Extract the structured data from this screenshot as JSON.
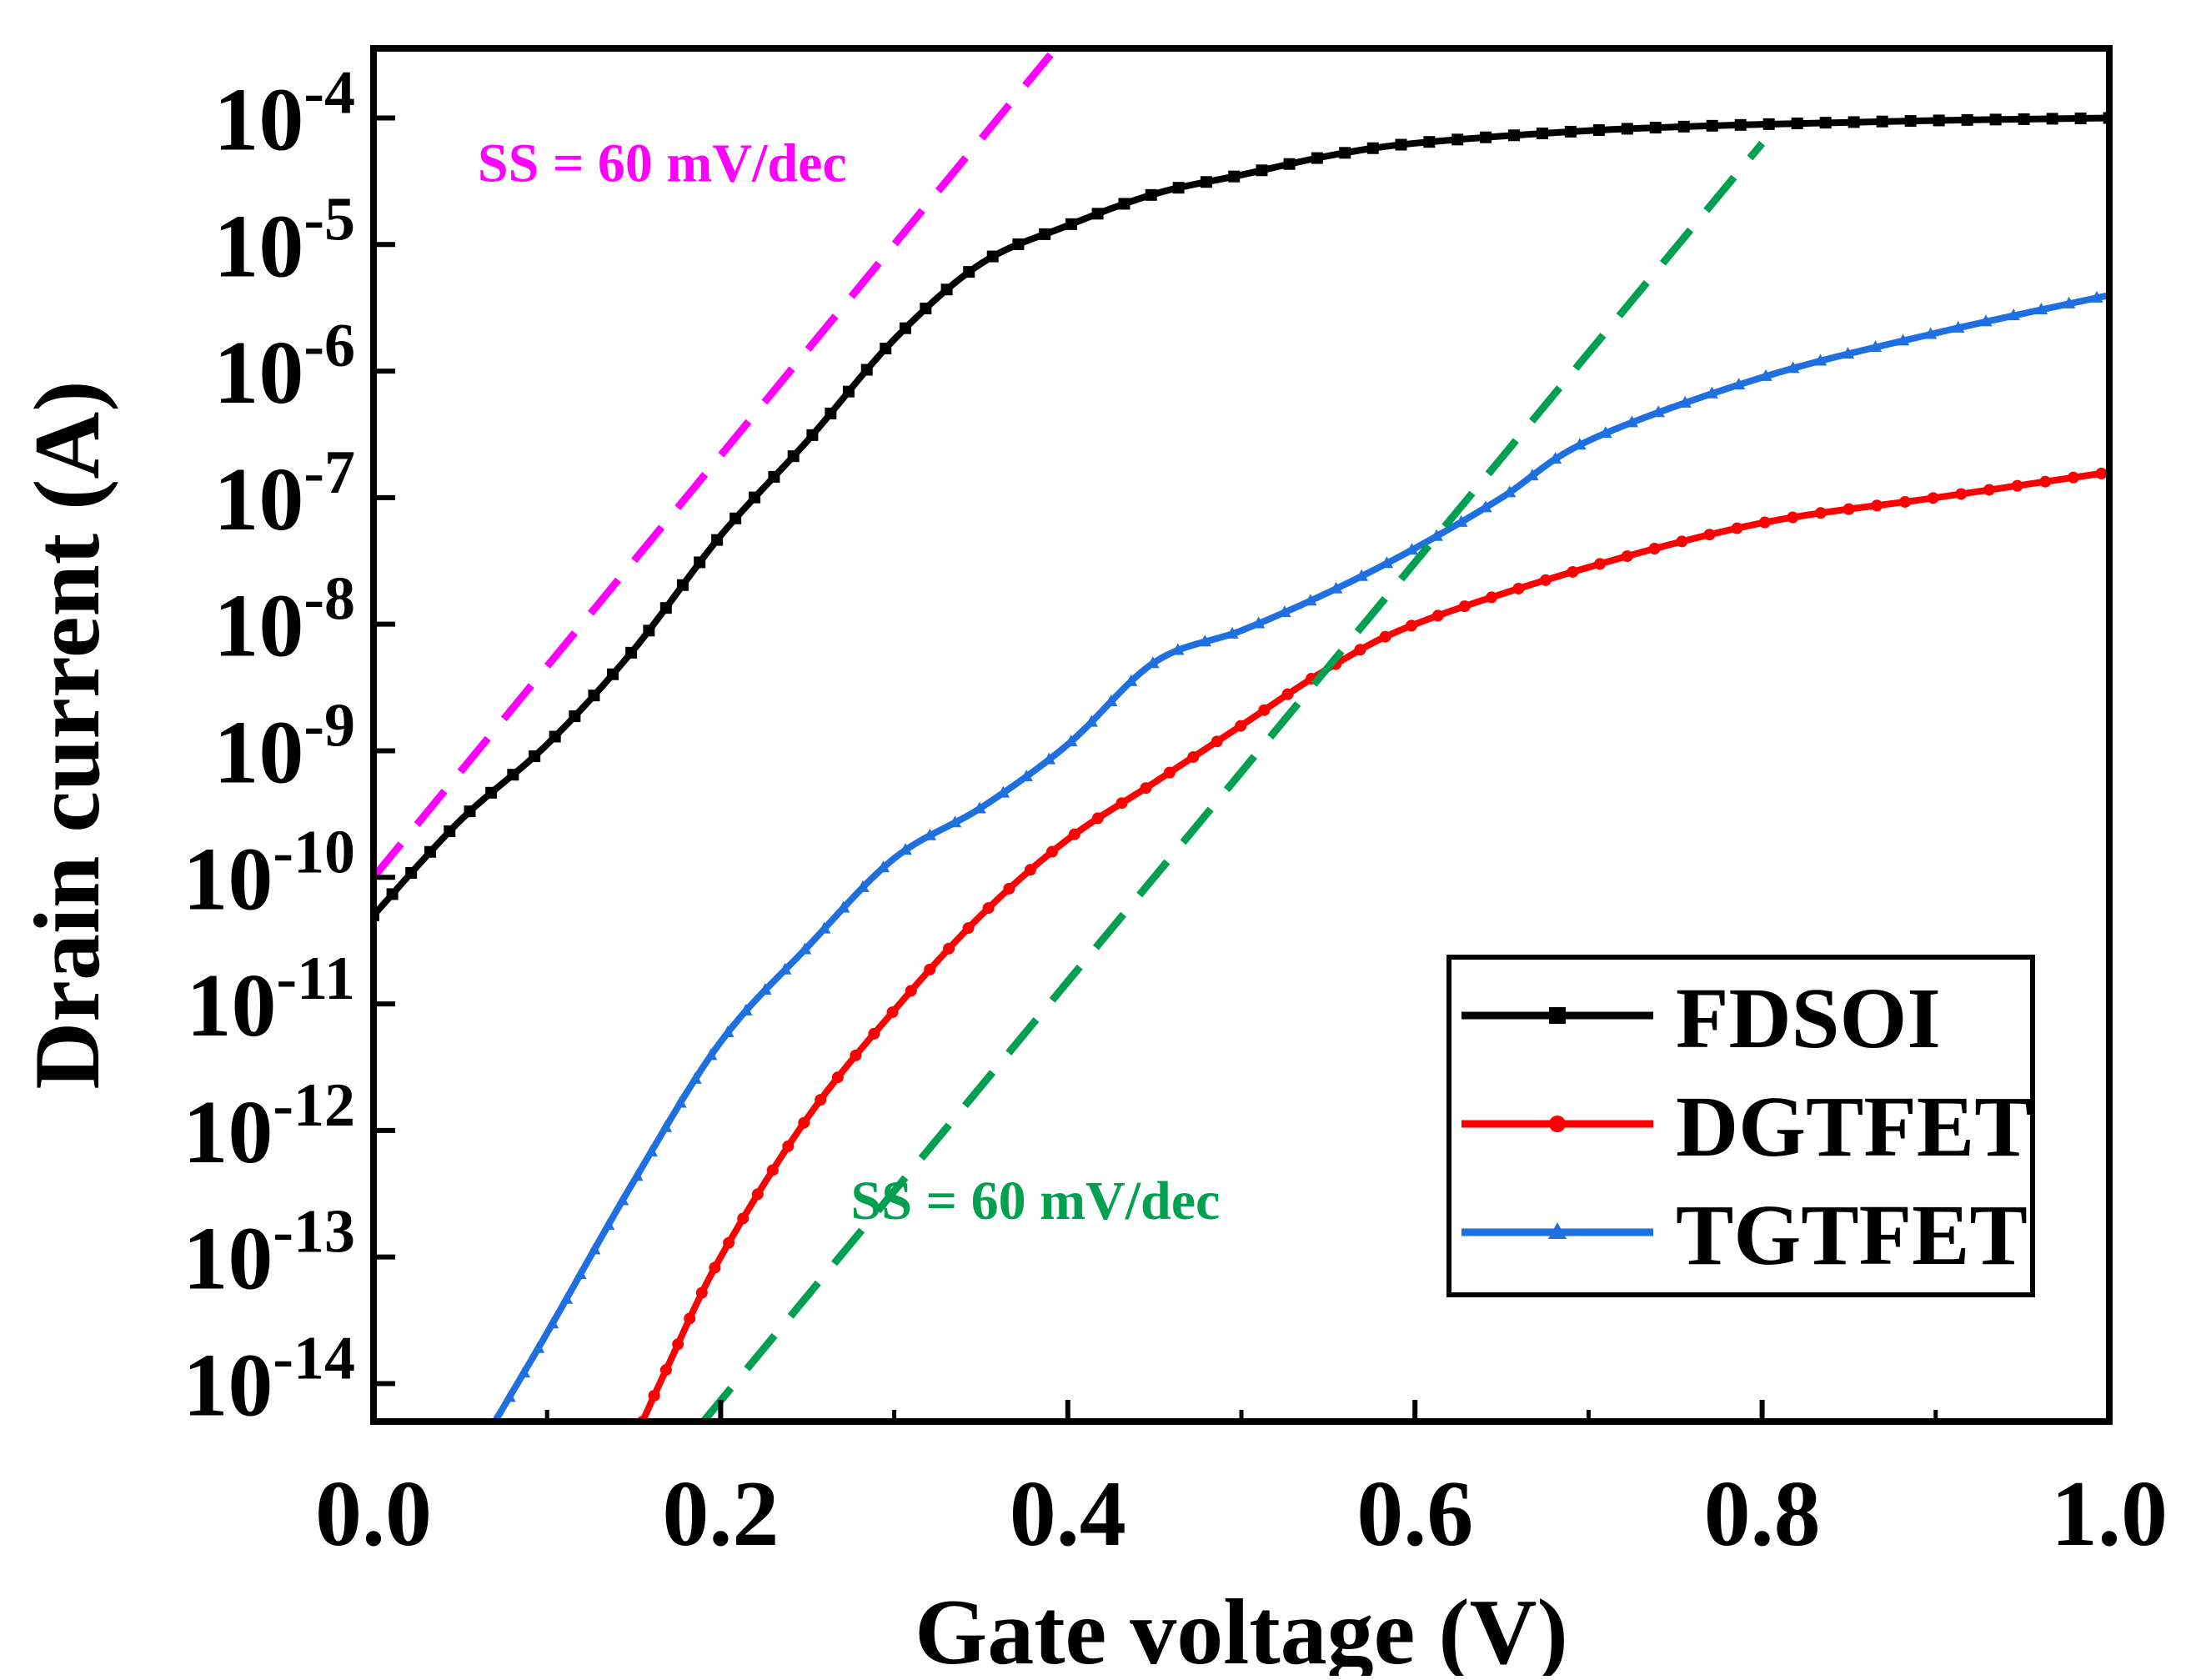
{
  "chart_data": {
    "type": "line",
    "title": "",
    "xlabel": "Gate voltage (V)",
    "ylabel": "Drain current (A)",
    "xlim": [
      0.0,
      1.0
    ],
    "ylim_log10": [
      -14.3,
      -3.45
    ],
    "y_scale": "log",
    "grid": false,
    "legend_position": "bottom-right",
    "x_ticks": [
      0.0,
      0.2,
      0.4,
      0.6,
      0.8,
      1.0
    ],
    "x_tick_labels": [
      "0.0",
      "0.2",
      "0.4",
      "0.6",
      "0.8",
      "1.0"
    ],
    "y_tick_base": "10",
    "y_tick_exponents": [
      "-4",
      "-5",
      "-6",
      "-7",
      "-8",
      "-9",
      "-10",
      "-11",
      "-12",
      "-13",
      "-14"
    ],
    "y_tick_values_log10": [
      -4,
      -5,
      -6,
      -7,
      -8,
      -9,
      -10,
      -11,
      -12,
      -13,
      -14
    ],
    "series": [
      {
        "name": "FDSOI",
        "color": "#000000",
        "marker": "square",
        "x": [
          0.0,
          0.05,
          0.1,
          0.15,
          0.2,
          0.25,
          0.3,
          0.35,
          0.4,
          0.45,
          0.5,
          0.55,
          0.6,
          0.7,
          0.8,
          0.9,
          1.0
        ],
        "log10_y": [
          -10.3,
          -9.55,
          -8.95,
          -8.2,
          -7.3,
          -6.55,
          -5.75,
          -5.15,
          -4.85,
          -4.6,
          -4.45,
          -4.3,
          -4.2,
          -4.1,
          -4.05,
          -4.02,
          -4.0
        ]
      },
      {
        "name": "DGTFET",
        "color": "#ff0000",
        "marker": "circle",
        "x": [
          0.155,
          0.17,
          0.2,
          0.25,
          0.3,
          0.35,
          0.4,
          0.45,
          0.5,
          0.55,
          0.6,
          0.7,
          0.8,
          0.9,
          1.0
        ],
        "log10_y": [
          -14.3,
          -13.85,
          -13.0,
          -11.9,
          -11.05,
          -10.3,
          -9.7,
          -9.25,
          -8.8,
          -8.35,
          -8.0,
          -7.55,
          -7.2,
          -7.0,
          -6.8
        ]
      },
      {
        "name": "TGTFET",
        "color": "#1e6fe0",
        "marker": "triangle",
        "x": [
          0.07,
          0.1,
          0.15,
          0.2,
          0.25,
          0.3,
          0.35,
          0.4,
          0.45,
          0.5,
          0.55,
          0.6,
          0.65,
          0.7,
          0.8,
          0.9,
          1.0
        ],
        "log10_y": [
          -14.3,
          -13.6,
          -12.4,
          -11.3,
          -10.55,
          -9.85,
          -9.45,
          -8.95,
          -8.3,
          -8.05,
          -7.75,
          -7.4,
          -7.0,
          -6.55,
          -6.05,
          -5.7,
          -5.4
        ]
      }
    ],
    "reference_lines": [
      {
        "name": "SS = 60 mV/dec (magenta)",
        "color": "#ff00ff",
        "style": "dashed",
        "x": [
          0.0,
          0.39
        ],
        "log10_y": [
          -10.0,
          -3.5
        ]
      },
      {
        "name": "SS = 60 mV/dec (green)",
        "color": "#00a050",
        "style": "dashed",
        "x": [
          0.19,
          0.8
        ],
        "log10_y": [
          -14.3,
          -4.2
        ]
      }
    ],
    "annotations": [
      {
        "text": "SS = 60 mV/dec",
        "color": "#ff00ff",
        "at_x": 0.06,
        "at_log10_y": -4.5
      },
      {
        "text": "SS = 60 mV/dec",
        "color": "#00a050",
        "at_x": 0.275,
        "at_log10_y": -12.7
      }
    ]
  }
}
